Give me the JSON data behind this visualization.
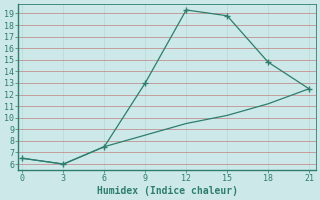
{
  "xlabel": "Humidex (Indice chaleur)",
  "background_color": "#cce8e8",
  "line_color": "#2e7d6e",
  "series1_x": [
    0,
    3,
    6,
    9,
    12,
    15,
    18,
    21
  ],
  "series1_y": [
    6.5,
    6.0,
    7.5,
    13.0,
    19.3,
    18.8,
    14.8,
    12.5
  ],
  "series2_x": [
    0,
    3,
    6,
    9,
    12,
    15,
    18,
    21
  ],
  "series2_y": [
    6.5,
    6.0,
    7.5,
    8.5,
    9.5,
    10.2,
    11.2,
    12.5
  ],
  "xlim": [
    -0.3,
    21.5
  ],
  "ylim": [
    5.5,
    19.8
  ],
  "xticks": [
    0,
    3,
    6,
    9,
    12,
    15,
    18,
    21
  ],
  "yticks": [
    6,
    7,
    8,
    9,
    10,
    11,
    12,
    13,
    14,
    15,
    16,
    17,
    18,
    19
  ],
  "hgrid_color": "#c08080",
  "vgrid_color": "#b8d8d8",
  "font_color": "#2e7d6e",
  "tick_font_size": 6.0,
  "xlabel_font_size": 7.0
}
